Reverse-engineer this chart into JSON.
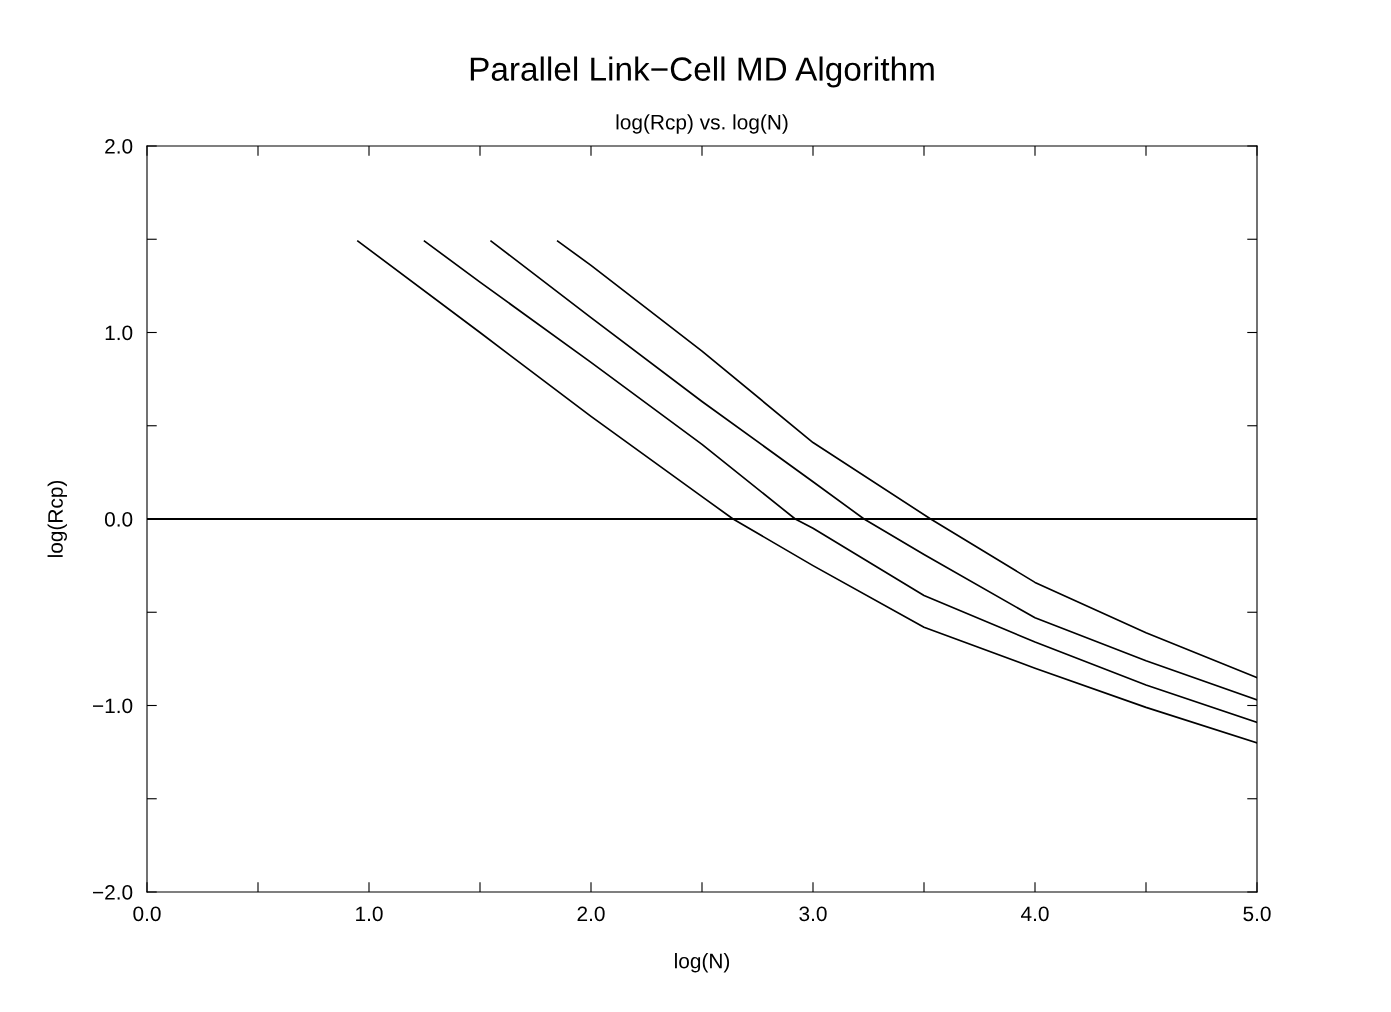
{
  "chart_data": {
    "type": "line",
    "title": "Parallel Link−Cell MD Algorithm",
    "subtitle": "log(Rcp) vs. log(N)",
    "xlabel": "log(N)",
    "ylabel": "log(Rcp)",
    "xlim": [
      0,
      5
    ],
    "ylim": [
      -2,
      2
    ],
    "xticks": [
      {
        "value": 0,
        "label": "0.0"
      },
      {
        "value": 0.5,
        "label": null
      },
      {
        "value": 1,
        "label": "1.0"
      },
      {
        "value": 1.5,
        "label": null
      },
      {
        "value": 2,
        "label": "2.0"
      },
      {
        "value": 2.5,
        "label": null
      },
      {
        "value": 3,
        "label": "3.0"
      },
      {
        "value": 3.5,
        "label": null
      },
      {
        "value": 4,
        "label": "4.0"
      },
      {
        "value": 4.5,
        "label": null
      },
      {
        "value": 5,
        "label": "5.0"
      }
    ],
    "yticks": [
      {
        "value": -2,
        "label": "−2.0"
      },
      {
        "value": -1.5,
        "label": null
      },
      {
        "value": -1,
        "label": "−1.0"
      },
      {
        "value": -0.5,
        "label": null
      },
      {
        "value": 0,
        "label": "0.0"
      },
      {
        "value": 0.5,
        "label": null
      },
      {
        "value": 1,
        "label": "1.0"
      },
      {
        "value": 1.5,
        "label": null
      },
      {
        "value": 2,
        "label": "2.0"
      }
    ],
    "grid": false,
    "marker": "none",
    "line_style": "solid",
    "ref_lines": [
      {
        "axis": "y",
        "value": 0,
        "color": "#000000"
      }
    ],
    "series": [
      {
        "color": "#000000",
        "x": [
          0.95,
          1.5,
          2.0,
          2.5,
          2.64,
          3.0,
          3.5,
          4.0,
          4.5,
          5.0
        ],
        "values": [
          1.49,
          1.0,
          0.55,
          0.12,
          0.0,
          -0.25,
          -0.58,
          -0.8,
          -1.01,
          -1.2
        ]
      },
      {
        "color": "#000000",
        "x": [
          1.25,
          1.5,
          2.0,
          2.5,
          2.92,
          3.0,
          3.5,
          4.0,
          4.5,
          5.0
        ],
        "values": [
          1.49,
          1.27,
          0.84,
          0.4,
          0.0,
          -0.05,
          -0.41,
          -0.66,
          -0.89,
          -1.09
        ]
      },
      {
        "color": "#000000",
        "x": [
          1.55,
          2.0,
          2.5,
          3.0,
          3.23,
          3.5,
          4.0,
          4.5,
          5.0
        ],
        "values": [
          1.49,
          1.08,
          0.63,
          0.2,
          0.0,
          -0.19,
          -0.53,
          -0.76,
          -0.97
        ]
      },
      {
        "color": "#000000",
        "x": [
          1.85,
          2.0,
          2.5,
          3.0,
          3.53,
          4.0,
          4.5,
          5.0
        ],
        "values": [
          1.49,
          1.36,
          0.9,
          0.41,
          0.0,
          -0.34,
          -0.61,
          -0.85
        ]
      }
    ]
  }
}
